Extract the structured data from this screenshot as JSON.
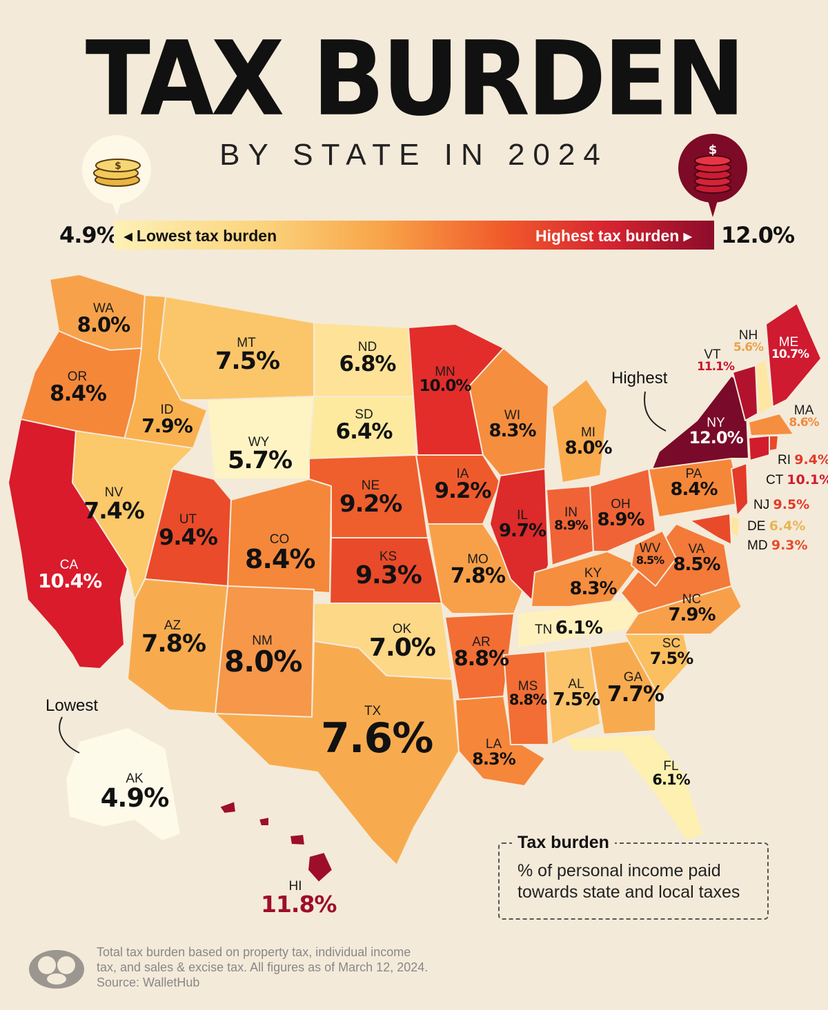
{
  "title": "TAX BURDEN",
  "subtitle": "BY STATE IN 2024",
  "legend": {
    "min_value": "4.9%",
    "max_value": "12.0%",
    "low_label": "◂ Lowest tax burden",
    "high_label": "Highest tax burden ▸"
  },
  "annotations": {
    "highest": "Highest",
    "lowest": "Lowest"
  },
  "note": {
    "title": "Tax burden",
    "text": "% of personal income paid towards state and local taxes"
  },
  "source": {
    "line1": "Total tax burden based on property tax, individual income",
    "line2": "tax, and sales & excise tax. All figures as of March 12, 2024.",
    "line3": "Source: WalletHub"
  },
  "colors": {
    "background": "#f4ead9",
    "scale": [
      "#fdf1b6",
      "#fbd37c",
      "#f8a347",
      "#f05a2b",
      "#d72530",
      "#8c0c2b"
    ]
  },
  "states": {
    "WA": {
      "abbr": "WA",
      "value": "8.0%"
    },
    "OR": {
      "abbr": "OR",
      "value": "8.4%"
    },
    "CA": {
      "abbr": "CA",
      "value": "10.4%"
    },
    "ID": {
      "abbr": "ID",
      "value": "7.9%"
    },
    "NV": {
      "abbr": "NV",
      "value": "7.4%"
    },
    "MT": {
      "abbr": "MT",
      "value": "7.5%"
    },
    "WY": {
      "abbr": "WY",
      "value": "5.7%"
    },
    "UT": {
      "abbr": "UT",
      "value": "9.4%"
    },
    "AZ": {
      "abbr": "AZ",
      "value": "7.8%"
    },
    "CO": {
      "abbr": "CO",
      "value": "8.4%"
    },
    "NM": {
      "abbr": "NM",
      "value": "8.0%"
    },
    "ND": {
      "abbr": "ND",
      "value": "6.8%"
    },
    "SD": {
      "abbr": "SD",
      "value": "6.4%"
    },
    "NE": {
      "abbr": "NE",
      "value": "9.2%"
    },
    "KS": {
      "abbr": "KS",
      "value": "9.3%"
    },
    "OK": {
      "abbr": "OK",
      "value": "7.0%"
    },
    "TX": {
      "abbr": "TX",
      "value": "7.6%"
    },
    "MN": {
      "abbr": "MN",
      "value": "10.0%"
    },
    "IA": {
      "abbr": "IA",
      "value": "9.2%"
    },
    "MO": {
      "abbr": "MO",
      "value": "7.8%"
    },
    "AR": {
      "abbr": "AR",
      "value": "8.8%"
    },
    "LA": {
      "abbr": "LA",
      "value": "8.3%"
    },
    "WI": {
      "abbr": "WI",
      "value": "8.3%"
    },
    "IL": {
      "abbr": "IL",
      "value": "9.7%"
    },
    "MI": {
      "abbr": "MI",
      "value": "8.0%"
    },
    "IN": {
      "abbr": "IN",
      "value": "8.9%"
    },
    "OH": {
      "abbr": "OH",
      "value": "8.9%"
    },
    "KY": {
      "abbr": "KY",
      "value": "8.3%"
    },
    "TN": {
      "abbr": "TN",
      "value": "6.1%"
    },
    "MS": {
      "abbr": "MS",
      "value": "8.8%"
    },
    "AL": {
      "abbr": "AL",
      "value": "7.5%"
    },
    "GA": {
      "abbr": "GA",
      "value": "7.7%"
    },
    "FL": {
      "abbr": "FL",
      "value": "6.1%"
    },
    "SC": {
      "abbr": "SC",
      "value": "7.5%"
    },
    "NC": {
      "abbr": "NC",
      "value": "7.9%"
    },
    "VA": {
      "abbr": "VA",
      "value": "8.5%"
    },
    "WV": {
      "abbr": "WV",
      "value": "8.5%"
    },
    "PA": {
      "abbr": "PA",
      "value": "8.4%"
    },
    "NY": {
      "abbr": "NY",
      "value": "12.0%"
    },
    "VT": {
      "abbr": "VT",
      "value": "11.1%"
    },
    "NH": {
      "abbr": "NH",
      "value": "5.6%"
    },
    "ME": {
      "abbr": "ME",
      "value": "10.7%"
    },
    "MA": {
      "abbr": "MA",
      "value": "8.6%"
    },
    "RI": {
      "abbr": "RI",
      "value": "9.4%"
    },
    "CT": {
      "abbr": "CT",
      "value": "10.1%"
    },
    "NJ": {
      "abbr": "NJ",
      "value": "9.5%"
    },
    "DE": {
      "abbr": "DE",
      "value": "6.4%"
    },
    "MD": {
      "abbr": "MD",
      "value": "9.3%"
    },
    "AK": {
      "abbr": "AK",
      "value": "4.9%"
    },
    "HI": {
      "abbr": "HI",
      "value": "11.8%"
    }
  }
}
